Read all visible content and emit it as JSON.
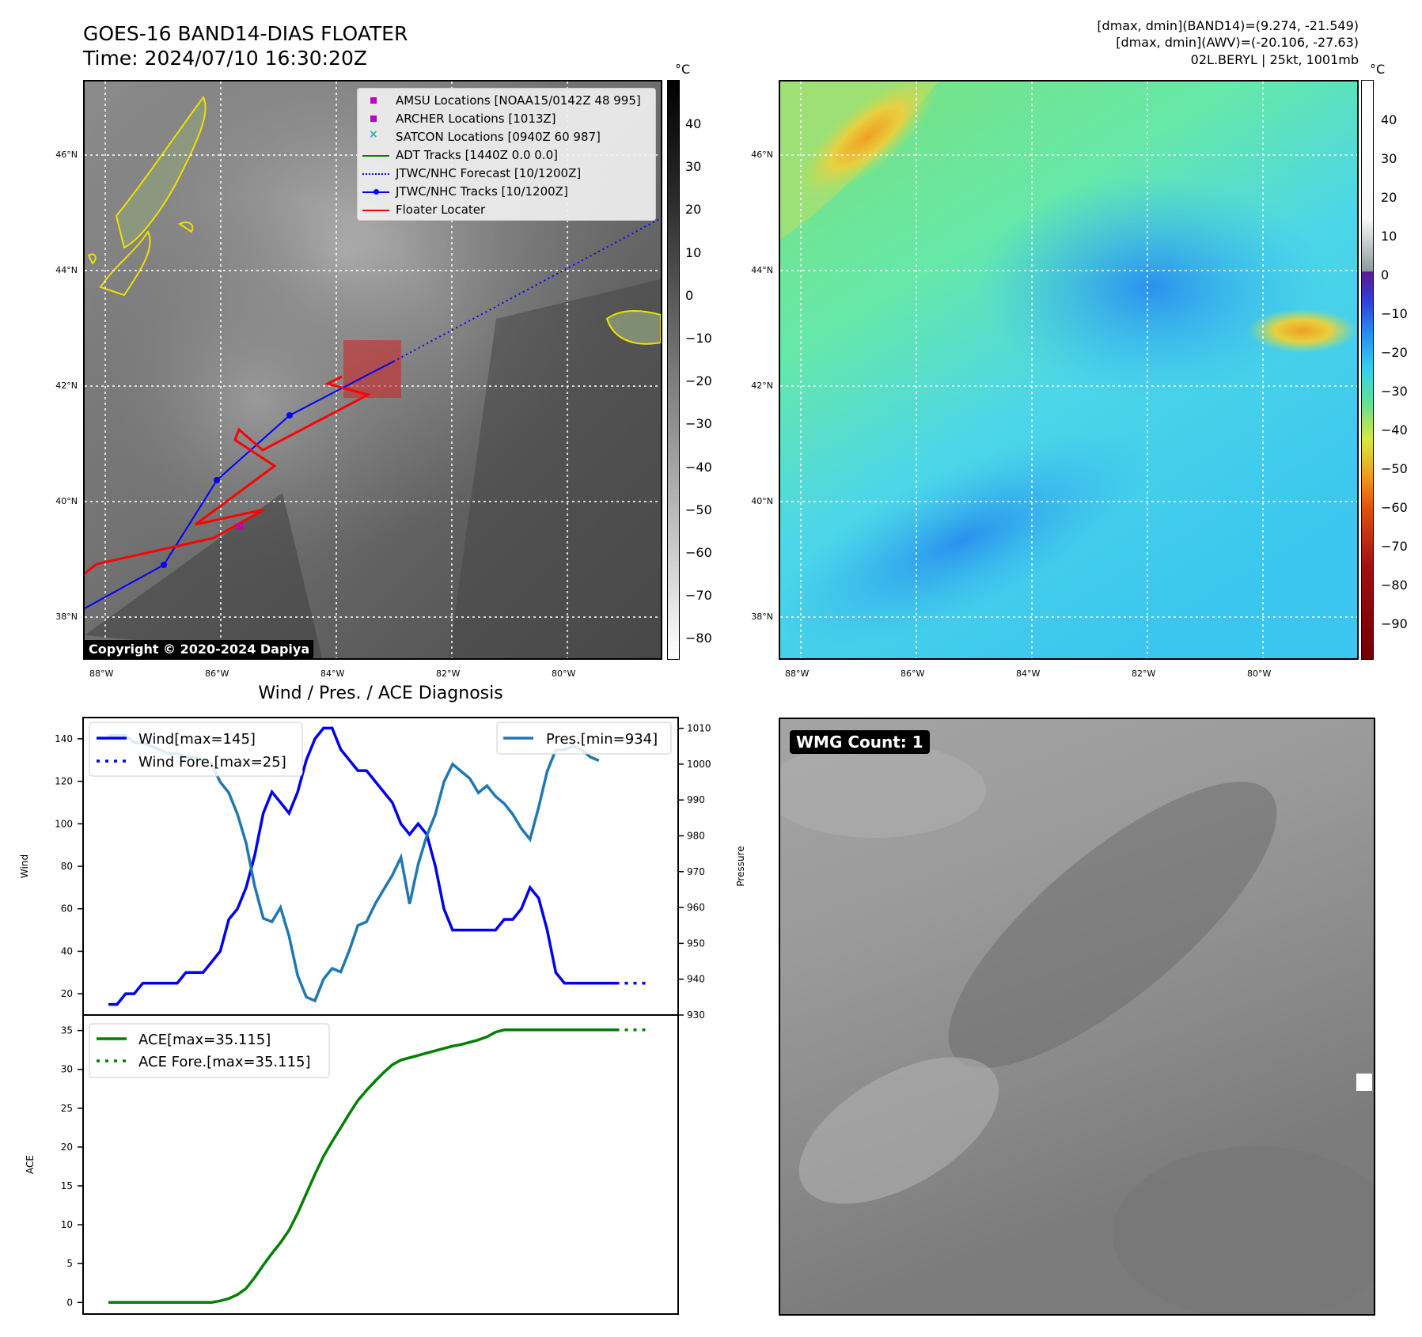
{
  "header": {
    "title_line1": "GOES-16 BAND14-DIAS FLOATER",
    "title_line2": "Time: 2024/07/10 16:30:20Z",
    "info_line1": "[dmax, dmin](BAND14)=(9.274, -21.549)",
    "info_line2": "[dmax, dmin](AWV)=(-20.106, -27.63)",
    "info_line3": "02L.BERYL | 25kt, 1001mb"
  },
  "ir_map": {
    "unit": "°C",
    "lat_labels": [
      "46°N",
      "44°N",
      "42°N",
      "40°N",
      "38°N"
    ],
    "lon_labels": [
      "88°W",
      "86°W",
      "84°W",
      "82°W",
      "80°W"
    ],
    "colorbar_ticks": [
      "40",
      "30",
      "20",
      "10",
      "0",
      "−10",
      "−20",
      "−30",
      "−40",
      "−50",
      "−60",
      "−70",
      "−80"
    ],
    "copyright": "Copyright © 2020-2024 Dapiya",
    "legend": [
      {
        "label": "AMSU Locations [NOAA15/0142Z 48 995]",
        "color": "#c000c0",
        "marker": "square"
      },
      {
        "label": "ARCHER Locations [1013Z]",
        "color": "#c000c0",
        "marker": "square"
      },
      {
        "label": "SATCON Locations [0940Z 60 987]",
        "color": "#20b0b0",
        "marker": "x"
      },
      {
        "label": "ADT Tracks [1440Z 0.0 0.0]",
        "color": "#008000",
        "marker": "line"
      },
      {
        "label": "JTWC/NHC Forecast [10/1200Z]",
        "color": "#0000ff",
        "marker": "dotted"
      },
      {
        "label": "JTWC/NHC Tracks [10/1200Z]",
        "color": "#0000ff",
        "marker": "line-dot"
      },
      {
        "label": "Floater Locater",
        "color": "#ff0000",
        "marker": "line"
      }
    ]
  },
  "awv_map": {
    "unit": "°C",
    "lat_labels": [
      "46°N",
      "44°N",
      "42°N",
      "40°N",
      "38°N"
    ],
    "lon_labels": [
      "88°W",
      "86°W",
      "84°W",
      "82°W",
      "80°W"
    ],
    "colorbar_ticks": [
      "40",
      "30",
      "20",
      "10",
      "0",
      "−10",
      "−20",
      "−30",
      "−40",
      "−50",
      "−60",
      "−70",
      "−80",
      "−90"
    ]
  },
  "diagnosis": {
    "title": "Wind / Pres. / ACE Diagnosis",
    "wind_ylabel": "Wind",
    "pres_ylabel": "Pressure",
    "ace_ylabel": "ACE",
    "wind_ticks": [
      "140",
      "120",
      "100",
      "80",
      "60",
      "40",
      "20"
    ],
    "pres_ticks": [
      "1010",
      "1000",
      "990",
      "980",
      "970",
      "960",
      "950",
      "940",
      "930"
    ],
    "ace_ticks": [
      "35",
      "30",
      "25",
      "20",
      "15",
      "10",
      "5",
      "0"
    ],
    "legend_wind": "Wind[max=145]",
    "legend_wind_fore": "Wind Fore.[max=25]",
    "legend_pres": "Pres.[min=934]",
    "legend_ace": "ACE[max=35.115]",
    "legend_ace_fore": "ACE Fore.[max=35.115]"
  },
  "wmg": {
    "label": "WMG Count: 1"
  },
  "colors": {
    "wind": "#0000ee",
    "pressure": "#1f77b4",
    "ace": "#008000",
    "track_red": "#ff0000",
    "track_blue": "#0000ff"
  },
  "chart_data": [
    {
      "type": "line",
      "name_hint": "wind",
      "x": [
        0,
        1,
        2,
        3,
        4,
        5,
        6,
        7,
        8,
        9,
        10,
        11,
        12,
        13,
        14,
        15,
        16,
        17,
        18,
        19,
        20,
        21,
        22,
        23,
        24,
        25,
        26,
        27,
        28,
        29,
        30,
        31,
        32,
        33,
        34,
        35,
        36,
        37,
        38,
        39,
        40,
        41,
        42,
        43,
        44,
        45,
        46,
        47,
        48,
        49,
        50,
        51,
        52,
        53,
        54,
        55,
        56,
        57,
        58,
        59,
        60,
        61,
        62,
        63
      ],
      "series": [
        {
          "name": "Wind[max=145]",
          "values": [
            15,
            15,
            20,
            20,
            25,
            25,
            25,
            25,
            25,
            30,
            30,
            30,
            35,
            40,
            55,
            60,
            70,
            85,
            105,
            115,
            110,
            105,
            115,
            130,
            140,
            145,
            145,
            135,
            130,
            125,
            125,
            120,
            115,
            110,
            100,
            95,
            100,
            95,
            80,
            60,
            50,
            50,
            50,
            50,
            50,
            50,
            55,
            55,
            60,
            70,
            65,
            50,
            30,
            25,
            25,
            25,
            25,
            25,
            25,
            25,
            null,
            null,
            null,
            null
          ]
        },
        {
          "name": "Wind Fore.[max=25]",
          "values": [
            null,
            null,
            null,
            null,
            null,
            null,
            null,
            null,
            null,
            null,
            null,
            null,
            null,
            null,
            null,
            null,
            null,
            null,
            null,
            null,
            null,
            null,
            null,
            null,
            null,
            null,
            null,
            null,
            null,
            null,
            null,
            null,
            null,
            null,
            null,
            null,
            null,
            null,
            null,
            null,
            null,
            null,
            null,
            null,
            null,
            null,
            null,
            null,
            null,
            null,
            null,
            null,
            null,
            null,
            null,
            null,
            null,
            null,
            null,
            25,
            25,
            25,
            25,
            25
          ]
        },
        {
          "name": "Pres.[min=934]",
          "values": [
            1008,
            1008,
            1008,
            1006,
            1006,
            1005,
            1004,
            1003,
            1003,
            1002,
            1002,
            1001,
            1000,
            995,
            992,
            986,
            978,
            966,
            957,
            956,
            960,
            952,
            941,
            935,
            934,
            940,
            943,
            942,
            948,
            955,
            956,
            961,
            965,
            969,
            974,
            961,
            972,
            980,
            986,
            995,
            1000,
            998,
            996,
            992,
            994,
            991,
            989,
            986,
            982,
            979,
            988,
            998,
            1004,
            1004,
            1005,
            1004,
            1002,
            1001,
            null,
            null,
            null,
            null,
            null,
            null
          ]
        }
      ],
      "ylim_wind": [
        10,
        150
      ],
      "ylim_pres": [
        930,
        1013
      ]
    },
    {
      "type": "line",
      "name_hint": "ace",
      "x": [
        0,
        1,
        2,
        3,
        4,
        5,
        6,
        7,
        8,
        9,
        10,
        11,
        12,
        13,
        14,
        15,
        16,
        17,
        18,
        19,
        20,
        21,
        22,
        23,
        24,
        25,
        26,
        27,
        28,
        29,
        30,
        31,
        32,
        33,
        34,
        35,
        36,
        37,
        38,
        39,
        40,
        41,
        42,
        43,
        44,
        45,
        46,
        47,
        48,
        49,
        50,
        51,
        52,
        53,
        54,
        55,
        56,
        57,
        58,
        59,
        60,
        61,
        62,
        63
      ],
      "series": [
        {
          "name": "ACE[max=35.115]",
          "values": [
            0,
            0,
            0,
            0,
            0,
            0,
            0,
            0,
            0,
            0,
            0,
            0,
            0,
            0.2,
            0.5,
            1,
            1.8,
            3.2,
            4.8,
            6.3,
            7.7,
            9.3,
            11.5,
            14,
            16.5,
            18.8,
            20.7,
            22.5,
            24.3,
            26,
            27.3,
            28.5,
            29.6,
            30.6,
            31.2,
            31.5,
            31.8,
            32.1,
            32.4,
            32.7,
            33,
            33.2,
            33.5,
            33.8,
            34.2,
            34.8,
            35.1,
            35.1,
            35.1,
            35.1,
            35.1,
            35.1,
            35.1,
            35.1,
            35.1,
            35.1,
            35.1,
            35.1,
            35.1,
            35.1,
            null,
            null,
            null,
            null
          ]
        },
        {
          "name": "ACE Fore.[max=35.115]",
          "values": [
            null,
            null,
            null,
            null,
            null,
            null,
            null,
            null,
            null,
            null,
            null,
            null,
            null,
            null,
            null,
            null,
            null,
            null,
            null,
            null,
            null,
            null,
            null,
            null,
            null,
            null,
            null,
            null,
            null,
            null,
            null,
            null,
            null,
            null,
            null,
            null,
            null,
            null,
            null,
            null,
            null,
            null,
            null,
            null,
            null,
            null,
            null,
            null,
            null,
            null,
            null,
            null,
            null,
            null,
            null,
            null,
            null,
            null,
            null,
            35.1,
            35.1,
            35.1,
            35.1,
            35.1
          ]
        }
      ],
      "ylim": [
        -1.5,
        37
      ]
    }
  ]
}
